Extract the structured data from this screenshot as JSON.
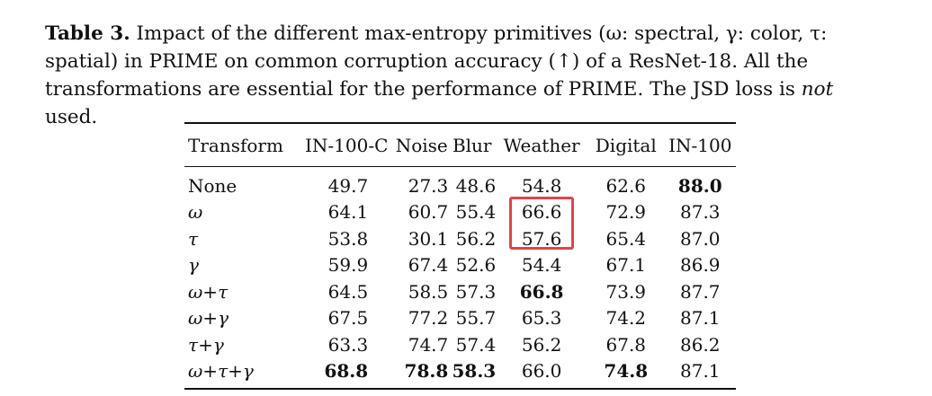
{
  "caption": {
    "label": "Table 3.",
    "text_before_italic": " Impact of the different max-entropy primitives (ω: spectral, γ: color, τ: spatial) in PRIME on common corruption accuracy (↑) of a ResNet-18. All the transformations are essential for the performance of PRIME. The JSD loss is ",
    "italic_word": "not",
    "text_after_italic": " used."
  },
  "table": {
    "headers": [
      "Transform",
      "IN-100-C",
      "Noise",
      "Blur",
      "Weather",
      "Digital",
      "IN-100"
    ],
    "rows": [
      {
        "transform": "None",
        "values": [
          "49.7",
          "27.3",
          "48.6",
          "54.8",
          "62.6",
          "88.0"
        ],
        "bold": [
          false,
          false,
          false,
          false,
          false,
          true
        ]
      },
      {
        "transform": "ω",
        "values": [
          "64.1",
          "60.7",
          "55.4",
          "66.6",
          "72.9",
          "87.3"
        ],
        "bold": [
          false,
          false,
          false,
          false,
          false,
          false
        ]
      },
      {
        "transform": "τ",
        "values": [
          "53.8",
          "30.1",
          "56.2",
          "57.6",
          "65.4",
          "87.0"
        ],
        "bold": [
          false,
          false,
          false,
          false,
          false,
          false
        ]
      },
      {
        "transform": "γ",
        "values": [
          "59.9",
          "67.4",
          "52.6",
          "54.4",
          "67.1",
          "86.9"
        ],
        "bold": [
          false,
          false,
          false,
          false,
          false,
          false
        ]
      },
      {
        "transform": "ω+τ",
        "values": [
          "64.5",
          "58.5",
          "57.3",
          "66.8",
          "73.9",
          "87.7"
        ],
        "bold": [
          false,
          false,
          false,
          true,
          false,
          false
        ]
      },
      {
        "transform": "ω+γ",
        "values": [
          "67.5",
          "77.2",
          "55.7",
          "65.3",
          "74.2",
          "87.1"
        ],
        "bold": [
          false,
          false,
          false,
          false,
          false,
          false
        ]
      },
      {
        "transform": "τ+γ",
        "values": [
          "63.3",
          "74.7",
          "57.4",
          "56.2",
          "67.8",
          "86.2"
        ],
        "bold": [
          false,
          false,
          false,
          false,
          false,
          false
        ]
      },
      {
        "transform": "ω+τ+γ",
        "values": [
          "68.8",
          "78.8",
          "58.3",
          "66.0",
          "74.8",
          "87.1"
        ],
        "bold": [
          true,
          true,
          true,
          false,
          true,
          false
        ]
      }
    ]
  },
  "annotation": {
    "highlight_color": "#e0444a",
    "highlighted_column": "Weather",
    "highlighted_rows": [
      "ω",
      "τ"
    ]
  }
}
